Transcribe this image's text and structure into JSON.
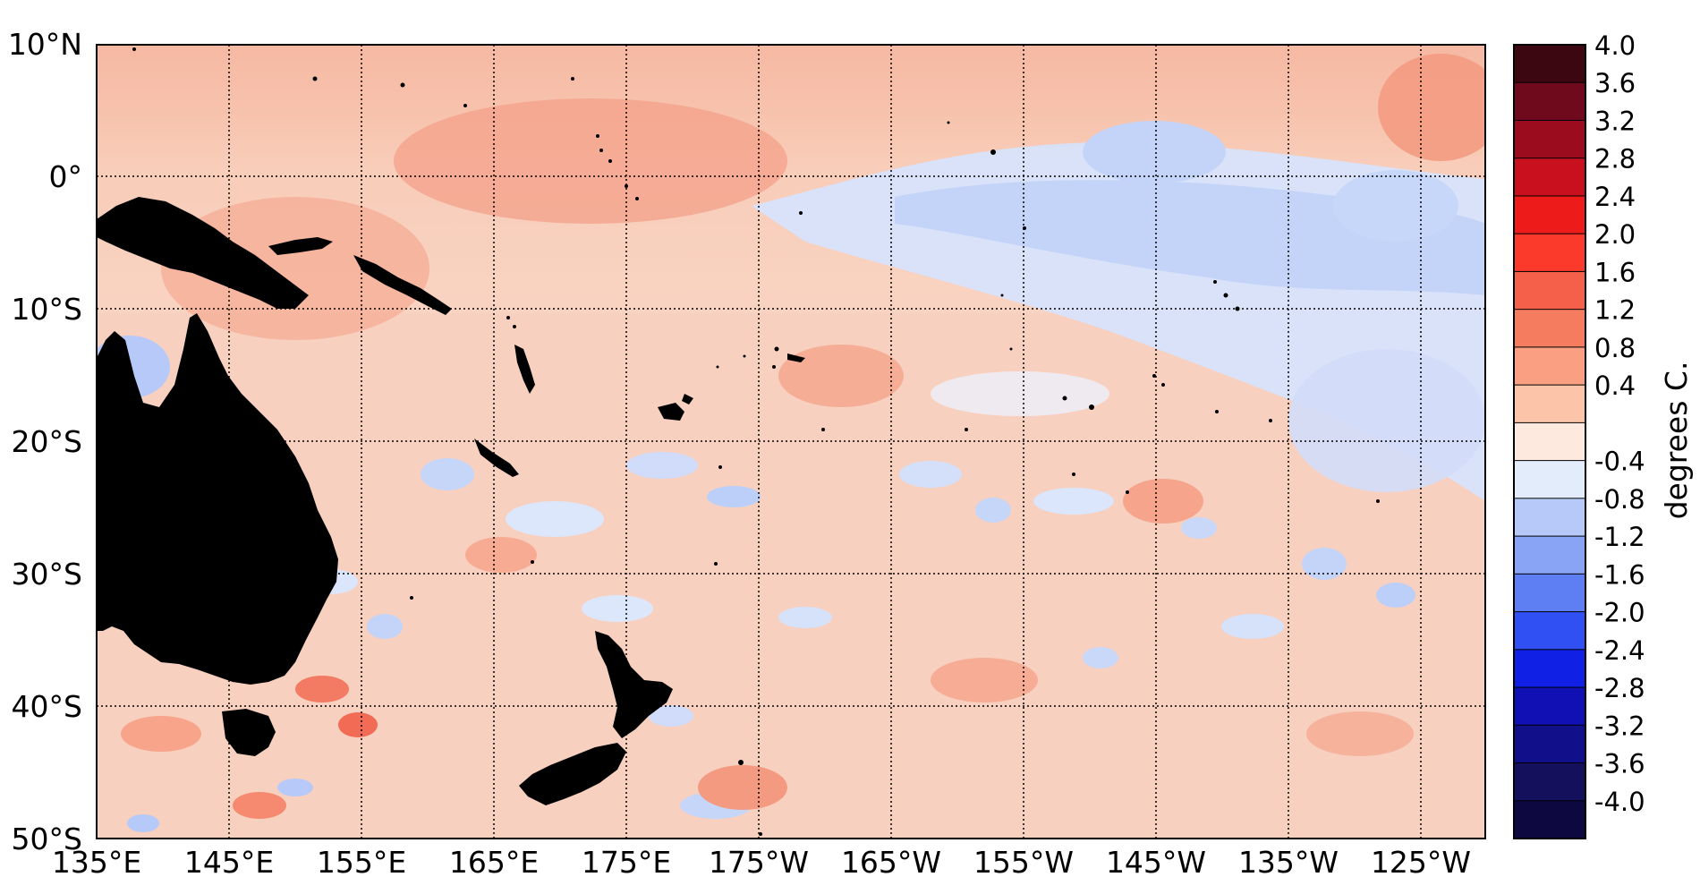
{
  "map": {
    "lat_labels": [
      "10°N",
      "0°",
      "10°S",
      "20°S",
      "30°S",
      "40°S",
      "50°S"
    ],
    "lon_labels": [
      "135°E",
      "145°E",
      "155°E",
      "165°E",
      "175°E",
      "175°W",
      "165°W",
      "155°W",
      "145°W",
      "135°W",
      "125°W"
    ],
    "lat_range": [
      -50,
      10
    ],
    "lon_range_east_degrees": [
      135,
      240
    ],
    "gridlines": "dotted black",
    "land_color": "#000000"
  },
  "colorbar": {
    "label": "degrees C.",
    "tick_labels": [
      "4.0",
      "3.6",
      "3.2",
      "2.8",
      "2.4",
      "2.0",
      "1.6",
      "1.2",
      "0.8",
      "0.4",
      "-0.4",
      "-0.8",
      "-1.2",
      "-1.6",
      "-2.0",
      "-2.4",
      "-2.8",
      "-3.2",
      "-3.6",
      "-4.0"
    ],
    "bins_top_to_bottom": [
      "#3d0712",
      "#6e0a1c",
      "#9a0c1e",
      "#c8101e",
      "#ee1b1b",
      "#fb3a2c",
      "#f5604a",
      "#f67c60",
      "#fa9f82",
      "#fcc5aa",
      "#fde9dd",
      "#e2ecfb",
      "#b7c9f8",
      "#8aa4f5",
      "#5d7ff3",
      "#3050f3",
      "#1020e5",
      "#1010b4",
      "#11108a",
      "#14105c",
      "#0e0840"
    ]
  }
}
